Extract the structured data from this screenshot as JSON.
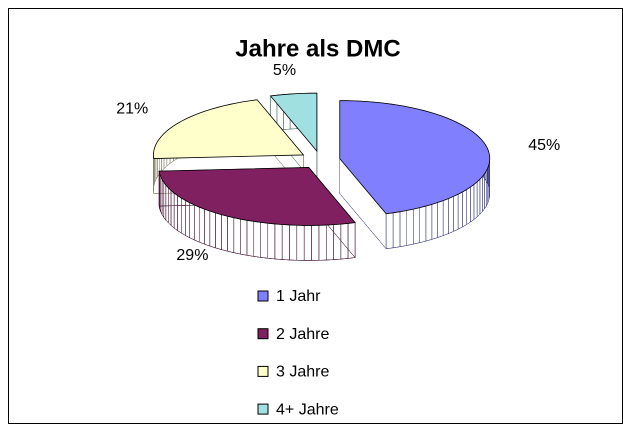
{
  "chart_data": {
    "type": "pie",
    "title": "Jahre als DMC",
    "categories": [
      "1 Jahr",
      "2 Jahre",
      "3 Jahre",
      "4+ Jahre"
    ],
    "values": [
      45,
      29,
      21,
      5
    ],
    "value_labels": [
      "45%",
      "29%",
      "21%",
      "5%"
    ],
    "colors": [
      "#8080ff",
      "#802060",
      "#ffffcc",
      "#a0e0e0"
    ],
    "legend": "bottom"
  }
}
